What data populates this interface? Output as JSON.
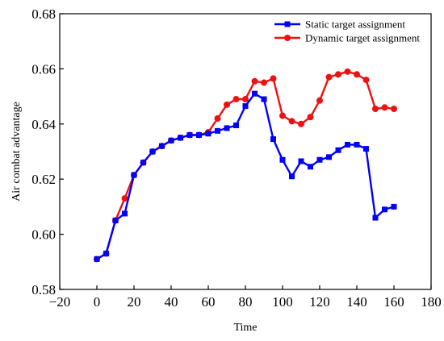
{
  "chart_data": {
    "type": "line",
    "title": "",
    "xlabel": "Time",
    "ylabel": "Air combat advantage",
    "xlim": [
      -20,
      180
    ],
    "ylim": [
      0.58,
      0.68
    ],
    "x_ticks": [
      -20,
      0,
      20,
      40,
      60,
      80,
      100,
      120,
      140,
      160,
      180
    ],
    "x_tick_labels": [
      "−20",
      "0",
      "20",
      "40",
      "60",
      "80",
      "100",
      "120",
      "140",
      "160",
      "180"
    ],
    "y_ticks": [
      0.58,
      0.6,
      0.62,
      0.64,
      0.66,
      0.68
    ],
    "y_tick_labels": [
      "0.58",
      "0.60",
      "0.62",
      "0.64",
      "0.66",
      "0.68"
    ],
    "grid": false,
    "legend_position": "top-right",
    "series": [
      {
        "name": "Static target assignment",
        "color": "#0000ff",
        "marker": "square",
        "points": [
          [
            0,
            0.591
          ],
          [
            5,
            0.593
          ],
          [
            10,
            0.605
          ],
          [
            15,
            0.6075
          ],
          [
            20,
            0.6215
          ],
          [
            25,
            0.626
          ],
          [
            30,
            0.63
          ],
          [
            35,
            0.632
          ],
          [
            40,
            0.634
          ],
          [
            45,
            0.635
          ],
          [
            50,
            0.636
          ],
          [
            55,
            0.636
          ],
          [
            60,
            0.6365
          ],
          [
            65,
            0.6375
          ],
          [
            70,
            0.6385
          ],
          [
            75,
            0.6395
          ],
          [
            80,
            0.6465
          ],
          [
            85,
            0.651
          ],
          [
            90,
            0.649
          ],
          [
            95,
            0.6345
          ],
          [
            100,
            0.627
          ],
          [
            105,
            0.621
          ],
          [
            110,
            0.6265
          ],
          [
            115,
            0.6245
          ],
          [
            120,
            0.627
          ],
          [
            125,
            0.628
          ],
          [
            130,
            0.6305
          ],
          [
            135,
            0.6325
          ],
          [
            140,
            0.6325
          ],
          [
            145,
            0.631
          ],
          [
            150,
            0.606
          ],
          [
            155,
            0.609
          ],
          [
            160,
            0.61
          ]
        ]
      },
      {
        "name": "Dynamic target assignment",
        "color": "#ee1111",
        "marker": "circle",
        "points": [
          [
            0,
            0.591
          ],
          [
            5,
            0.593
          ],
          [
            10,
            0.605
          ],
          [
            15,
            0.613
          ],
          [
            20,
            0.6215
          ],
          [
            25,
            0.626
          ],
          [
            30,
            0.63
          ],
          [
            35,
            0.632
          ],
          [
            40,
            0.634
          ],
          [
            45,
            0.635
          ],
          [
            50,
            0.636
          ],
          [
            55,
            0.636
          ],
          [
            60,
            0.637
          ],
          [
            65,
            0.642
          ],
          [
            70,
            0.647
          ],
          [
            75,
            0.649
          ],
          [
            80,
            0.649
          ],
          [
            85,
            0.6555
          ],
          [
            90,
            0.655
          ],
          [
            95,
            0.6565
          ],
          [
            100,
            0.643
          ],
          [
            105,
            0.641
          ],
          [
            110,
            0.64
          ],
          [
            115,
            0.6425
          ],
          [
            120,
            0.6485
          ],
          [
            125,
            0.657
          ],
          [
            130,
            0.658
          ],
          [
            135,
            0.659
          ],
          [
            140,
            0.658
          ],
          [
            145,
            0.656
          ],
          [
            150,
            0.6455
          ],
          [
            155,
            0.646
          ],
          [
            160,
            0.6455
          ]
        ]
      }
    ]
  }
}
